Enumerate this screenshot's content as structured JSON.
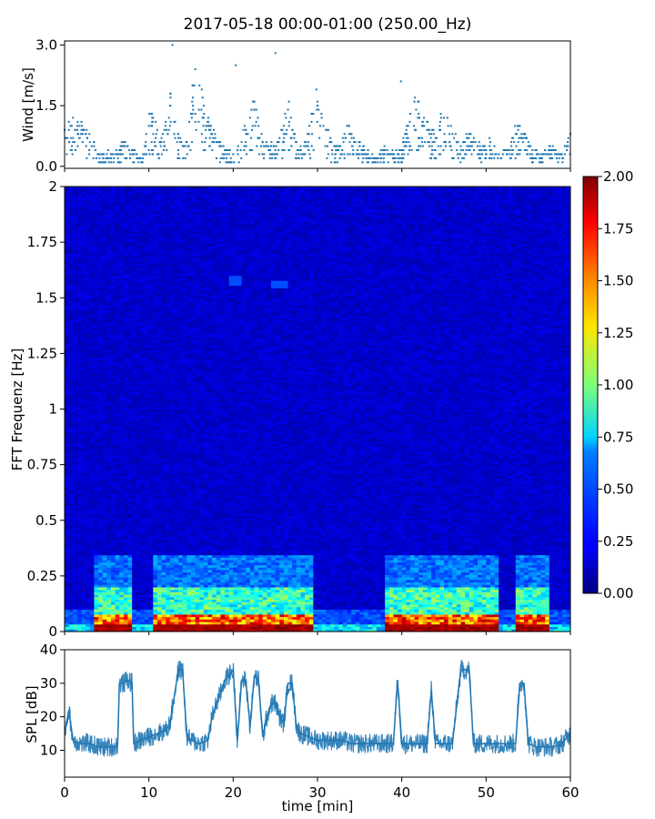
{
  "figure": {
    "title": "2017-05-18 00:00-01:00 (250.00_Hz)"
  },
  "chart_data": [
    {
      "id": "wind",
      "type": "scatter",
      "title": "",
      "xlabel": "",
      "ylabel": "Wind [m/s]",
      "xlim": [
        0,
        60
      ],
      "ylim": [
        -0.05,
        3.1
      ],
      "yticks": [
        "0.0",
        "1.5",
        "3.0"
      ],
      "ytick_values": [
        0,
        1.5,
        3.0
      ],
      "marker_color": "#1f77b4",
      "series": [
        {
          "x": [
            0,
            0.5,
            1,
            1.5,
            2,
            2.5,
            3,
            3.5,
            4,
            4.5,
            5,
            5.5,
            6,
            6.5,
            7,
            7.5,
            8,
            8.5,
            9,
            9.5,
            10,
            10.5,
            11,
            11.5,
            12,
            12.5,
            13,
            13.5,
            14,
            14.5,
            15,
            15.5,
            16,
            16.5,
            17,
            17.5,
            18,
            18.5,
            19,
            19.5,
            20,
            20.5,
            21,
            21.5,
            22,
            22.5,
            23,
            23.5,
            24,
            24.5,
            25,
            25.5,
            26,
            26.5,
            27,
            27.5,
            28,
            28.5,
            29,
            29.5,
            30,
            30.5,
            31,
            31.5,
            32,
            32.5,
            33,
            33.5,
            34,
            34.5,
            35,
            35.5,
            36,
            36.5,
            37,
            37.5,
            38,
            38.5,
            39,
            39.5,
            40,
            40.5,
            41,
            41.5,
            42,
            42.5,
            43,
            43.5,
            44,
            44.5,
            45,
            45.5,
            46,
            46.5,
            47,
            47.5,
            48,
            48.5,
            49,
            49.5,
            50,
            50.5,
            51,
            51.5,
            52,
            52.5,
            53,
            53.5,
            54,
            54.5,
            55,
            55.5,
            56,
            56.5,
            57,
            57.5,
            58,
            58.5,
            59,
            59.5,
            60
          ],
          "y": [
            0.9,
            1.1,
            1.2,
            1.0,
            0.9,
            0.8,
            0.6,
            0.5,
            0.3,
            0.3,
            0.3,
            0.3,
            0.3,
            0.4,
            0.6,
            0.5,
            0.4,
            0.3,
            0.2,
            0.5,
            1.0,
            1.2,
            0.9,
            0.7,
            1.1,
            1.5,
            1.1,
            0.7,
            0.5,
            0.6,
            1.3,
            2.4,
            2.0,
            1.2,
            1.0,
            0.8,
            0.6,
            0.5,
            0.4,
            0.3,
            0.3,
            0.4,
            0.6,
            0.9,
            1.2,
            1.4,
            1.0,
            0.6,
            0.5,
            0.5,
            0.4,
            0.7,
            1.0,
            1.4,
            0.9,
            0.6,
            0.5,
            0.6,
            0.8,
            1.3,
            1.6,
            1.2,
            0.9,
            0.6,
            0.5,
            0.4,
            0.7,
            1.0,
            0.8,
            0.6,
            0.5,
            0.4,
            0.3,
            0.3,
            0.2,
            0.3,
            0.4,
            0.3,
            0.3,
            0.3,
            0.4,
            0.8,
            1.3,
            1.6,
            1.3,
            1.0,
            0.9,
            0.8,
            0.7,
            1.0,
            1.2,
            1.0,
            0.8,
            0.6,
            0.5,
            0.6,
            0.8,
            0.6,
            0.5,
            0.4,
            0.4,
            0.6,
            0.5,
            0.3,
            0.3,
            0.4,
            0.6,
            0.8,
            1.0,
            0.8,
            0.5,
            0.4,
            0.3,
            0.3,
            0.4,
            0.5,
            0.4,
            0.3,
            0.3,
            0.5,
            0.8
          ]
        }
      ]
    },
    {
      "id": "spectrogram",
      "type": "heatmap",
      "title": "",
      "xlabel": "",
      "ylabel": "FFT Frequenz [Hz]",
      "xlim": [
        0,
        60
      ],
      "ylim": [
        0,
        2
      ],
      "yticks": [
        "0",
        "0.25",
        "0.5",
        "0.75",
        "1",
        "1.25",
        "1.5",
        "1.75",
        "2"
      ],
      "ytick_values": [
        0,
        0.25,
        0.5,
        0.75,
        1,
        1.25,
        1.5,
        1.75,
        2
      ],
      "colormap": "jet",
      "clim": [
        0,
        2
      ],
      "colorbar_ticks": [
        "0.00",
        "0.25",
        "0.50",
        "0.75",
        "1.00",
        "1.25",
        "1.50",
        "1.75",
        "2.00"
      ],
      "colorbar_tick_values": [
        0,
        0.25,
        0.5,
        0.75,
        1.0,
        1.25,
        1.5,
        1.75,
        2.0
      ],
      "active_intervals_min": [
        [
          3.3,
          8.2
        ],
        [
          10.7,
          29.5
        ],
        [
          38.2,
          51.7
        ],
        [
          53.7,
          57.5
        ]
      ],
      "background_level": 0.15
    },
    {
      "id": "spl",
      "type": "line",
      "title": "",
      "xlabel": "time [min]",
      "ylabel": "SPL [dB]",
      "xlim": [
        0,
        60
      ],
      "ylim": [
        2,
        40
      ],
      "xticks": [
        "0",
        "10",
        "20",
        "30",
        "40",
        "50",
        "60"
      ],
      "xtick_values": [
        0,
        10,
        20,
        30,
        40,
        50,
        60
      ],
      "yticks": [
        "10",
        "20",
        "30",
        "40"
      ],
      "ytick_values": [
        10,
        20,
        30,
        40
      ],
      "line_color": "#1f77b4",
      "series": [
        {
          "x": [
            0,
            0.5,
            1,
            2,
            3,
            4,
            5,
            6,
            6.3,
            6.5,
            7,
            7.5,
            8,
            8.2,
            9,
            10,
            11,
            12,
            12.5,
            13,
            13.5,
            14,
            14.5,
            15,
            16,
            17,
            17.5,
            18,
            18.5,
            19,
            20,
            20.5,
            21,
            21.5,
            22,
            22.5,
            23,
            23.5,
            24,
            24.5,
            25,
            25.5,
            26,
            26.5,
            27,
            27.5,
            28,
            29,
            30,
            31,
            32,
            33,
            34,
            35,
            36,
            37,
            38,
            39,
            39.5,
            40,
            41,
            42,
            43,
            43.5,
            44,
            45,
            46,
            47,
            47.5,
            48,
            48.5,
            49,
            50,
            51,
            52,
            53,
            53.5,
            54,
            54.5,
            55,
            56,
            57,
            58,
            59,
            60
          ],
          "y": [
            15,
            22,
            13,
            12,
            12,
            11,
            11,
            11,
            12,
            30,
            30,
            31,
            30,
            12,
            13,
            14,
            15,
            16,
            18,
            26,
            34,
            34,
            14,
            13,
            12,
            13,
            20,
            24,
            27,
            31,
            34,
            13,
            31,
            31,
            17,
            32,
            31,
            14,
            20,
            24,
            24,
            20,
            18,
            30,
            30,
            17,
            15,
            14,
            13,
            13,
            13,
            13,
            12,
            12,
            12,
            12,
            12,
            12,
            31,
            12,
            12,
            12,
            12,
            28,
            12,
            12,
            12,
            34,
            34,
            34,
            12,
            12,
            12,
            12,
            12,
            12,
            12,
            30,
            30,
            12,
            11,
            11,
            11,
            12,
            15
          ]
        }
      ]
    }
  ]
}
